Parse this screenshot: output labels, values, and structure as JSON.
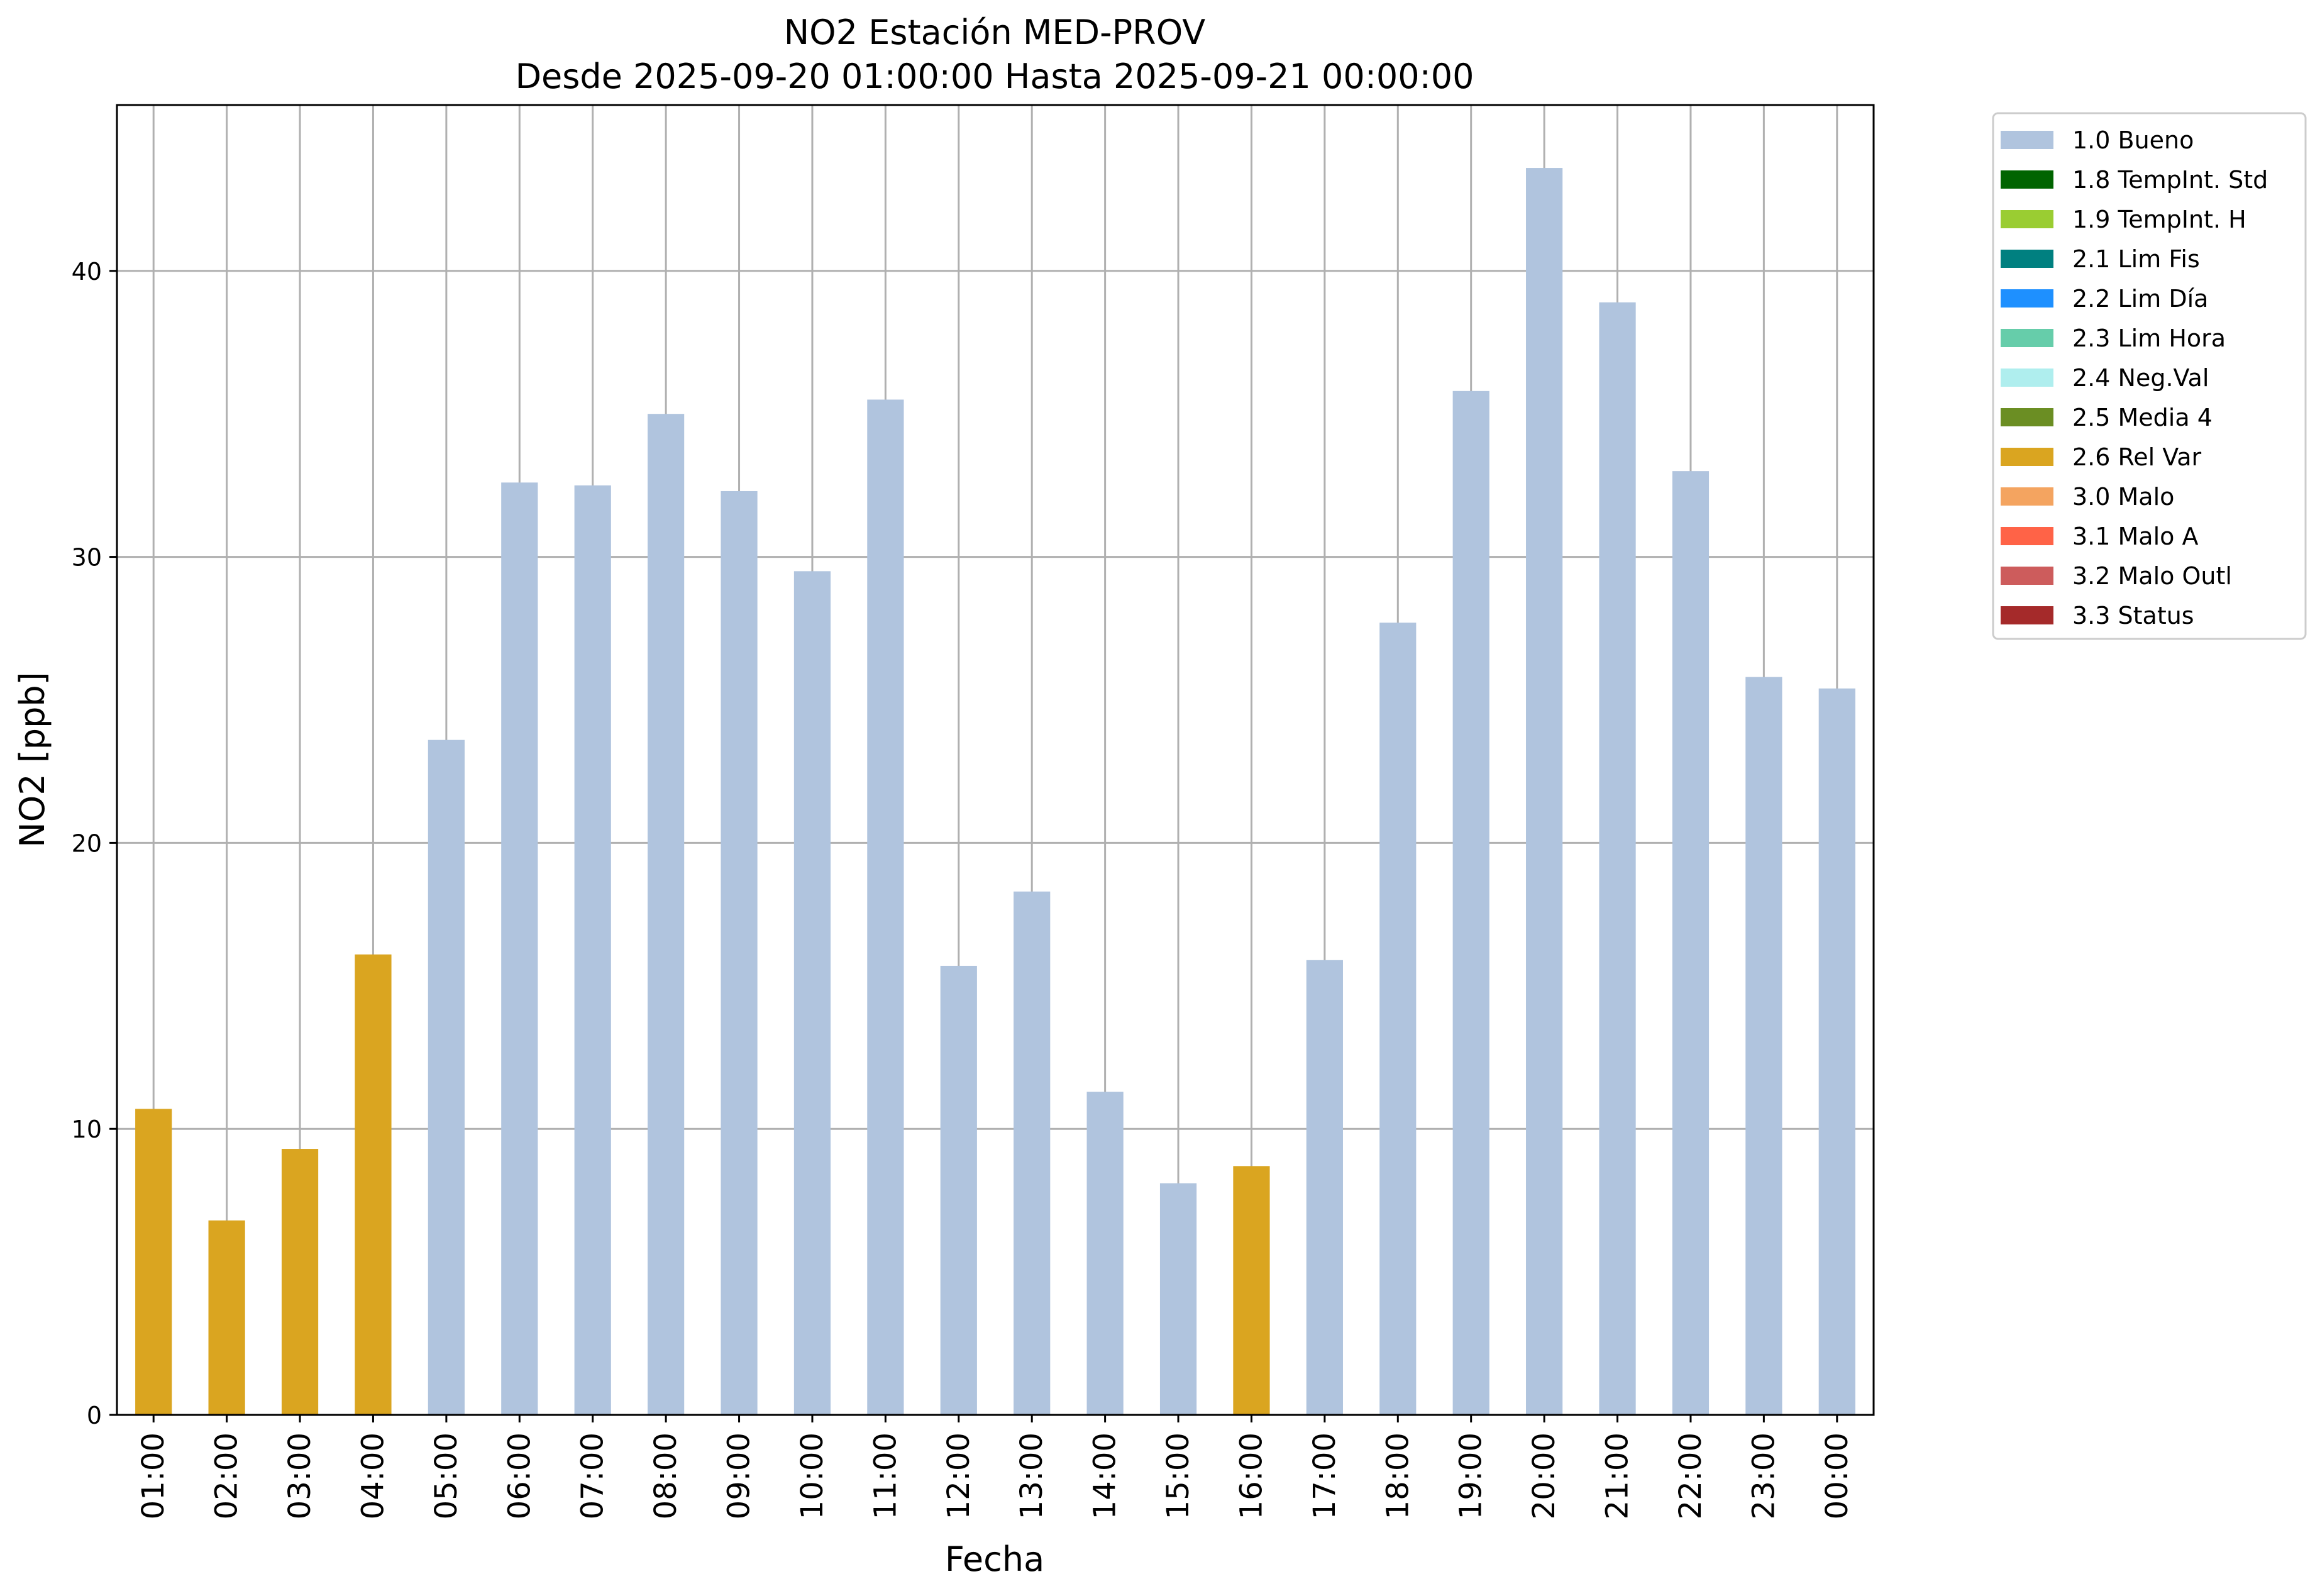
{
  "chart_data": {
    "type": "bar",
    "title": "NO2 Estación MED-PROV",
    "subtitle": "Desde 2025-09-20 01:00:00 Hasta 2025-09-21 00:00:00",
    "xlabel": "Fecha",
    "ylabel": "NO2 [ppb]",
    "ylim": [
      0,
      45.8
    ],
    "yticks": [
      0,
      10,
      20,
      30,
      40
    ],
    "grid": true,
    "legend_position": "outside-right-top",
    "categories": [
      "01:00",
      "02:00",
      "03:00",
      "04:00",
      "05:00",
      "06:00",
      "07:00",
      "08:00",
      "09:00",
      "10:00",
      "11:00",
      "12:00",
      "13:00",
      "14:00",
      "15:00",
      "16:00",
      "17:00",
      "18:00",
      "19:00",
      "20:00",
      "21:00",
      "22:00",
      "23:00",
      "00:00"
    ],
    "values": [
      10.7,
      6.8,
      9.3,
      16.1,
      23.6,
      32.6,
      32.5,
      35.0,
      32.3,
      29.5,
      35.5,
      15.7,
      18.3,
      11.3,
      8.1,
      8.7,
      15.9,
      27.7,
      35.8,
      43.6,
      38.9,
      33.0,
      25.8,
      25.4
    ],
    "flags": [
      "2.6 Rel Var",
      "2.6 Rel Var",
      "2.6 Rel Var",
      "2.6 Rel Var",
      "1.0 Bueno",
      "1.0 Bueno",
      "1.0 Bueno",
      "1.0 Bueno",
      "1.0 Bueno",
      "1.0 Bueno",
      "1.0 Bueno",
      "1.0 Bueno",
      "1.0 Bueno",
      "1.0 Bueno",
      "1.0 Bueno",
      "2.6 Rel Var",
      "1.0 Bueno",
      "1.0 Bueno",
      "1.0 Bueno",
      "1.0 Bueno",
      "1.0 Bueno",
      "1.0 Bueno",
      "1.0 Bueno",
      "1.0 Bueno"
    ],
    "legend": [
      {
        "label": "1.0 Bueno",
        "color": "#b0c4de"
      },
      {
        "label": "1.8 TempInt. Std",
        "color": "#006400"
      },
      {
        "label": "1.9 TempInt. H",
        "color": "#9acd32"
      },
      {
        "label": "2.1 Lim Fis",
        "color": "#008080"
      },
      {
        "label": "2.2 Lim Día",
        "color": "#1e90ff"
      },
      {
        "label": "2.3 Lim Hora",
        "color": "#66cdaa"
      },
      {
        "label": "2.4 Neg.Val",
        "color": "#afeeee"
      },
      {
        "label": "2.5 Media 4",
        "color": "#6b8e23"
      },
      {
        "label": "2.6 Rel Var",
        "color": "#daa520"
      },
      {
        "label": "3.0 Malo",
        "color": "#f4a460"
      },
      {
        "label": "3.1 Malo A",
        "color": "#ff6347"
      },
      {
        "label": "3.2 Malo Outl",
        "color": "#cd5c5c"
      },
      {
        "label": "3.3 Status",
        "color": "#a52a2a"
      }
    ]
  }
}
